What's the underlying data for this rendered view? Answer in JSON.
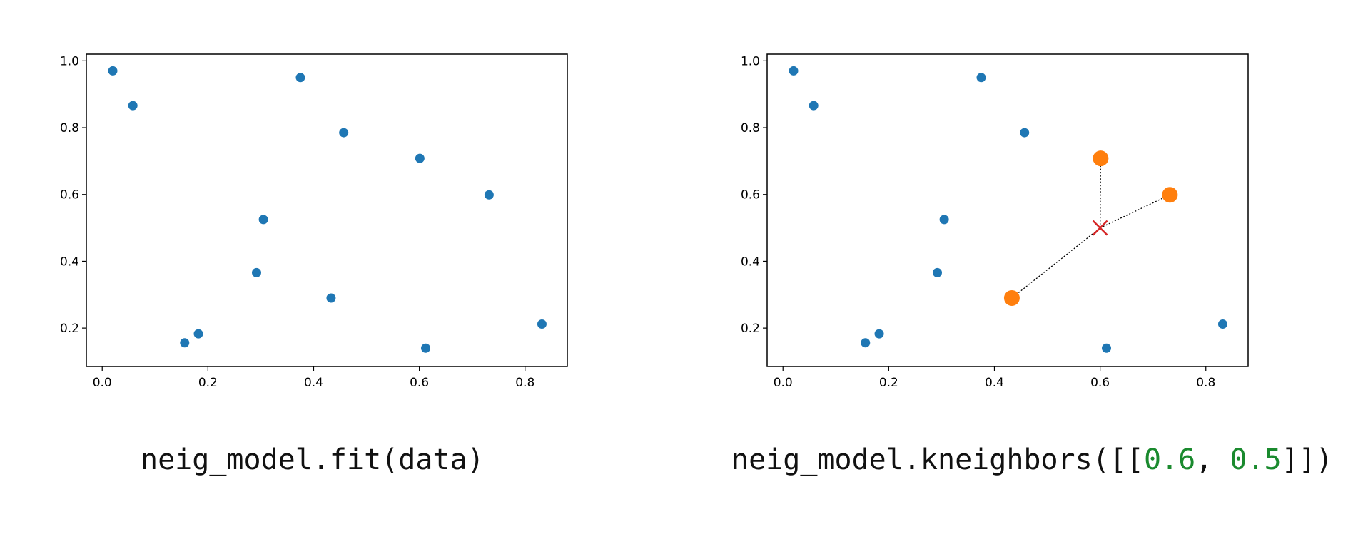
{
  "colors": {
    "points": "#1f77b4",
    "neighbors": "#ff7f0e",
    "query": "#d62728",
    "code_number": "#1a8a2e"
  },
  "captions": {
    "left_prefix": "neig_model.fit(data)",
    "right_prefix": "neig_model.kneighbors([[",
    "right_x": "0.6",
    "right_sep": ", ",
    "right_y": "0.5",
    "right_suffix": "]])"
  },
  "chart_data": [
    {
      "type": "scatter",
      "title": "",
      "xlabel": "",
      "ylabel": "",
      "xlim": [
        -0.03,
        0.88
      ],
      "ylim": [
        0.085,
        1.02
      ],
      "xticks": [
        "0.0",
        "0.2",
        "0.4",
        "0.6",
        "0.8"
      ],
      "yticks": [
        "0.2",
        "0.4",
        "0.6",
        "0.8",
        "1.0"
      ],
      "grid": false,
      "points": [
        [
          0.02,
          0.97
        ],
        [
          0.058,
          0.866
        ],
        [
          0.375,
          0.95
        ],
        [
          0.457,
          0.785
        ],
        [
          0.601,
          0.708
        ],
        [
          0.732,
          0.599
        ],
        [
          0.305,
          0.525
        ],
        [
          0.292,
          0.366
        ],
        [
          0.433,
          0.29
        ],
        [
          0.156,
          0.156
        ],
        [
          0.182,
          0.183
        ],
        [
          0.612,
          0.14
        ],
        [
          0.832,
          0.212
        ]
      ]
    },
    {
      "type": "scatter",
      "title": "",
      "xlabel": "",
      "ylabel": "",
      "xlim": [
        -0.03,
        0.88
      ],
      "ylim": [
        0.085,
        1.02
      ],
      "xticks": [
        "0.0",
        "0.2",
        "0.4",
        "0.6",
        "0.8"
      ],
      "yticks": [
        "0.2",
        "0.4",
        "0.6",
        "0.8",
        "1.0"
      ],
      "grid": false,
      "points": [
        [
          0.02,
          0.97
        ],
        [
          0.058,
          0.866
        ],
        [
          0.375,
          0.95
        ],
        [
          0.457,
          0.785
        ],
        [
          0.305,
          0.525
        ],
        [
          0.292,
          0.366
        ],
        [
          0.156,
          0.156
        ],
        [
          0.182,
          0.183
        ],
        [
          0.612,
          0.14
        ],
        [
          0.832,
          0.212
        ]
      ],
      "neighbors": [
        [
          0.601,
          0.708
        ],
        [
          0.732,
          0.599
        ],
        [
          0.433,
          0.29
        ]
      ],
      "query": [
        0.6,
        0.5
      ]
    }
  ]
}
